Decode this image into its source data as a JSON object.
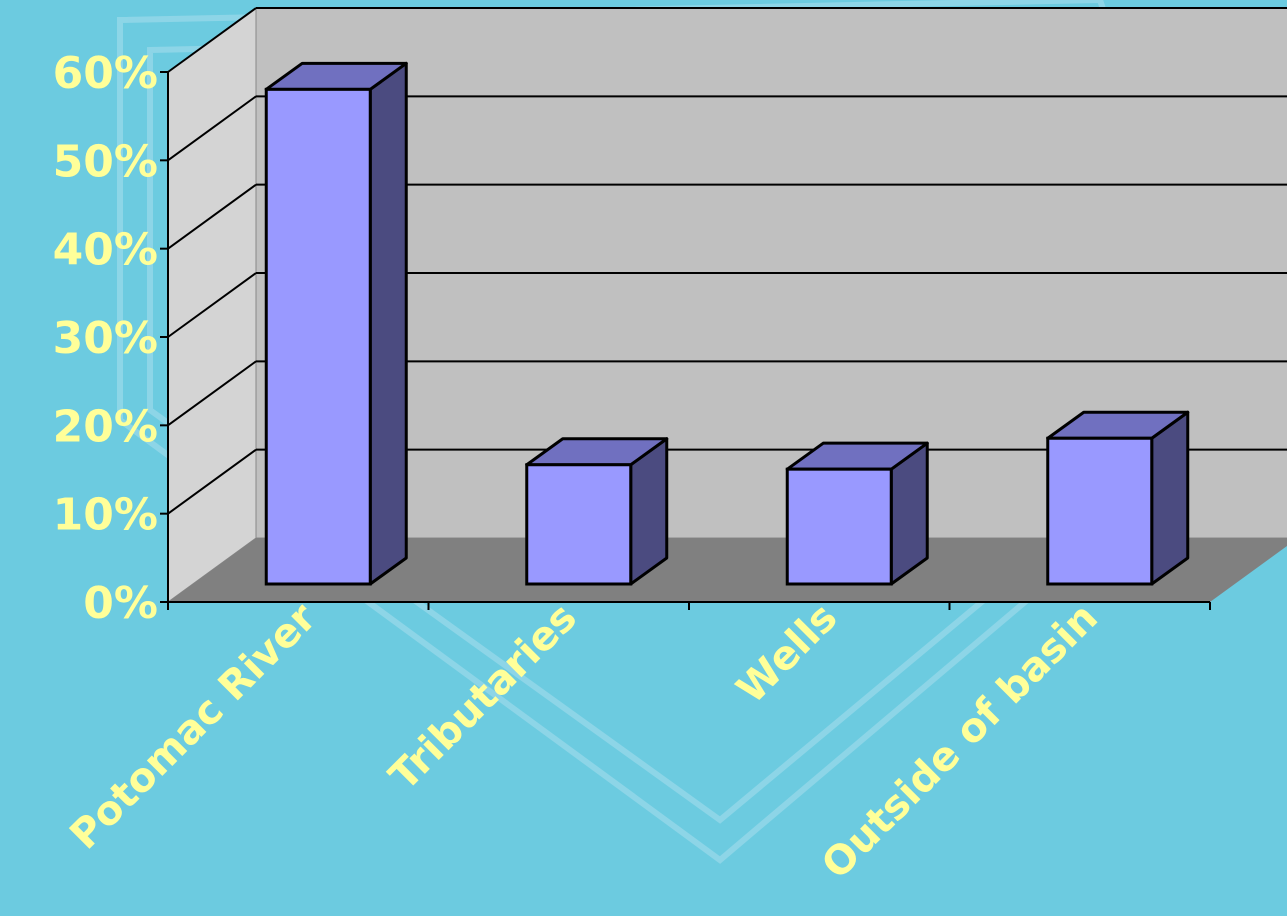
{
  "chart_data": {
    "type": "bar",
    "title": "",
    "xlabel": "",
    "ylabel": "",
    "categories": [
      "Potomac River",
      "Tributaries",
      "Wells",
      "Outside of basin"
    ],
    "values": [
      56,
      13.5,
      13,
      16.5
    ],
    "ylim": [
      0,
      60
    ],
    "yticks": [
      "0%",
      "10%",
      "20%",
      "30%",
      "40%",
      "50%",
      "60%"
    ],
    "grid": true,
    "style": "3d",
    "colors": {
      "background": "#6ccbe0",
      "back_wall": "#c0c0c0",
      "side_wall": "#d4d4d4",
      "floor": "#808080",
      "bar_front": "#9999ff",
      "bar_top": "#7070c0",
      "bar_side": "#4b4b80",
      "label": "#ffff99"
    }
  }
}
